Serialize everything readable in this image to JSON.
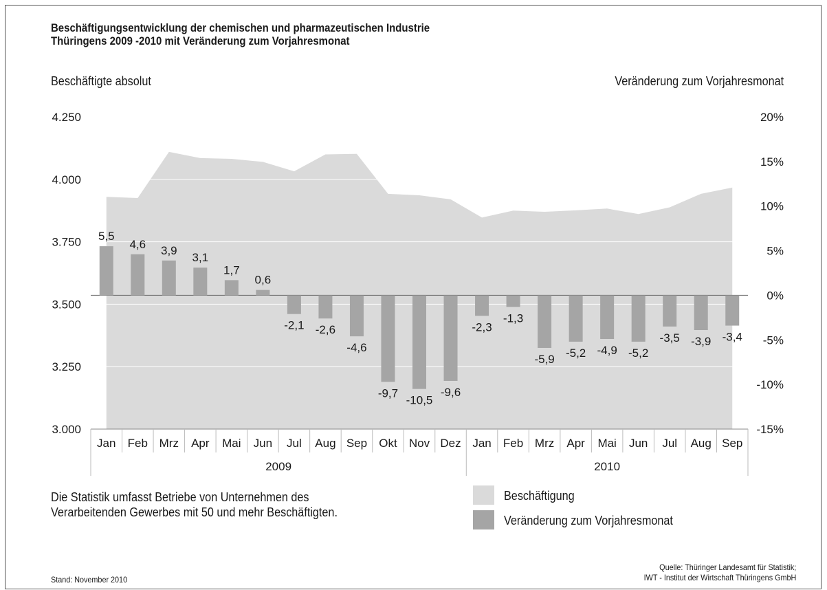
{
  "title_line1": "Beschäftigungsentwicklung  der chemischen und pharmazeutischen Industrie",
  "title_line2": "Thüringens 2009 -2010 mit Veränderung zum Vorjahresmonat",
  "left_axis_title": "Beschäftigte absolut",
  "right_axis_title": "Veränderung zum Vorjahresmonat",
  "note_line1": "Die Statistik umfasst Betriebe von Unternehmen des",
  "note_line2": "Verarbeitenden Gewerbes  mit 50  und mehr Beschäftigten.",
  "legend": [
    {
      "label": "Beschäftigung",
      "color": "#dadada"
    },
    {
      "label": "Veränderung  zum Vorjahresmonat",
      "color": "#a5a5a5"
    }
  ],
  "stand": "Stand: November 2010",
  "source_line1": "Quelle: Thüringer Landesamt für Statistik;",
  "source_line2": "IWT - Institut der Wirtschaft Thüringens GmbH",
  "colors": {
    "area": "#dadada",
    "bars": "#a5a5a5",
    "grid": "#ffffff",
    "text": "#1a1a1a"
  },
  "chart_data": {
    "type": "bar",
    "categories": [
      "Jan",
      "Feb",
      "Mrz",
      "Apr",
      "Mai",
      "Jun",
      "Jul",
      "Aug",
      "Sep",
      "Okt",
      "Nov",
      "Dez",
      "Jan",
      "Feb",
      "Mrz",
      "Apr",
      "Mai",
      "Jun",
      "Jul",
      "Aug",
      "Sep"
    ],
    "year_groups": [
      {
        "label": "2009",
        "count": 12
      },
      {
        "label": "2010",
        "count": 9
      }
    ],
    "series": [
      {
        "name": "Beschäftigung",
        "type": "area",
        "axis": "left",
        "values": [
          3930,
          3925,
          4110,
          4085,
          4082,
          4070,
          4032,
          4100,
          4102,
          3942,
          3936,
          3920,
          3847,
          3875,
          3870,
          3876,
          3883,
          3861,
          3888,
          3942,
          3967
        ]
      },
      {
        "name": "Veränderung  zum Vorjahresmonat",
        "type": "bar",
        "axis": "right",
        "values": [
          5.5,
          4.6,
          3.9,
          3.1,
          1.7,
          0.6,
          -2.1,
          -2.6,
          -4.6,
          -9.7,
          -10.5,
          -9.6,
          -2.3,
          -1.3,
          -5.9,
          -5.2,
          -4.9,
          -5.2,
          -3.5,
          -3.9,
          -3.4
        ],
        "labels": [
          "5,5",
          "4,6",
          "3,9",
          "3,1",
          "1,7",
          "0,6",
          "-2,1",
          "-2,6",
          "-4,6",
          "-9,7",
          "-10,5",
          "-9,6",
          "-2,3",
          "-1,3",
          "-5,9",
          "-5,2",
          "-4,9",
          "-5,2",
          "-3,5",
          "-3,9",
          "-3,4"
        ]
      }
    ],
    "left_axis": {
      "ylim": [
        3000,
        4250
      ],
      "ticks": [
        3000,
        3250,
        3500,
        3750,
        4000,
        4250
      ],
      "tick_labels": [
        "3.000",
        "3.250",
        "3.500",
        "3.750",
        "4.000",
        "4.250"
      ]
    },
    "right_axis": {
      "ylim": [
        -15,
        20
      ],
      "ticks": [
        -15,
        -10,
        -5,
        0,
        5,
        10,
        15,
        20
      ],
      "tick_labels": [
        "-15%",
        "-10%",
        "-5%",
        "0%",
        "5%",
        "10%",
        "15%",
        "20%"
      ]
    },
    "grid": true
  }
}
